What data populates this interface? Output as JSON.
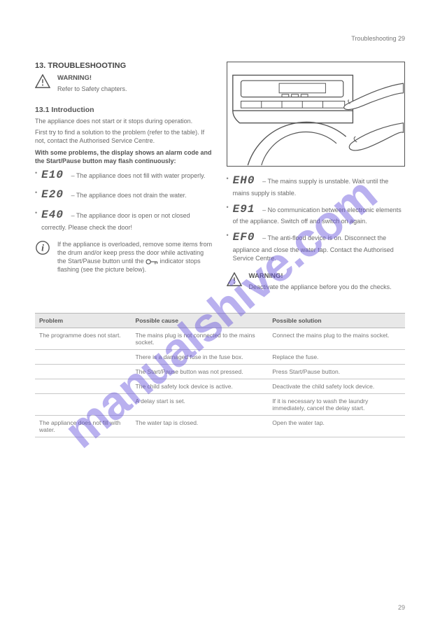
{
  "header_text": "Troubleshooting  29",
  "watermark": "manualshive.com",
  "footer": "29",
  "left": {
    "title": "13. TROUBLESHOOTING",
    "warning_intro": "WARNING!",
    "warning_body": "Refer to Safety chapters.",
    "intro_title": "13.1 Introduction",
    "intro_p1": "The appliance does not start or it stops during operation.",
    "intro_p2": "First try to find a solution to the problem (refer to the table). If not, contact the Authorised Service Centre.",
    "intro_p3": "With some problems, the display shows an alarm code and the Start/Pause button may flash continuously:",
    "code_e10_label": "E10",
    "code_e10": " – The appliance does not fill with water properly.",
    "code_e20_label": "E20",
    "code_e20": " – The appliance does not drain the water.",
    "code_e40_label": "E40",
    "code_e40": " – The appliance door is open or not closed correctly. Please check the door!",
    "info_body": "If the appliance is overloaded, remove some items from the drum and/or keep press the door while activating the Start/Pause button until the ",
    "info_body2": " indicator stops flashing (see the picture below)."
  },
  "right": {
    "code_eh0_label": "EH0",
    "code_eh0": " – The mains supply is unstable. Wait until the mains supply is stable.",
    "code_e91_label": "E91",
    "code_e91": " – No communication between electronic elements of the appliance. Switch off and switch on again.",
    "code_ef0_label": "EF0",
    "code_ef0": " – The anti-flood device is on. Disconnect the appliance and close the water tap. Contact the Authorised Service Centre.",
    "warn2": "WARNING!",
    "warn2_body": "Deactivate the appliance before you do the checks."
  },
  "table": {
    "headers": [
      "Problem",
      "Possible cause",
      "Possible solution"
    ],
    "col_widths": [
      "26%",
      "37%",
      "37%"
    ],
    "rows": [
      [
        "The programme does not start.",
        "The mains plug is not connected to the mains socket.",
        "Connect the mains plug to the mains socket."
      ],
      [
        "",
        "There is a damaged fuse in the fuse box.",
        "Replace the fuse."
      ],
      [
        "",
        "The Start/Pause button was not pressed.",
        "Press Start/Pause button."
      ],
      [
        "",
        "The child safety lock device is active.",
        "Deactivate the child safety lock device."
      ],
      [
        "",
        "A delay start is set.",
        "If it is necessary to wash the laundry immediately, cancel the delay start."
      ],
      [
        "The appliance does not fill with water.",
        "The water tap is closed.",
        "Open the water tap."
      ]
    ]
  },
  "colors": {
    "text": "#6a6a6a",
    "border": "#c8c8c8",
    "th_bg": "#e8e8e8",
    "watermark": "rgba(100,80,220,0.45)"
  }
}
